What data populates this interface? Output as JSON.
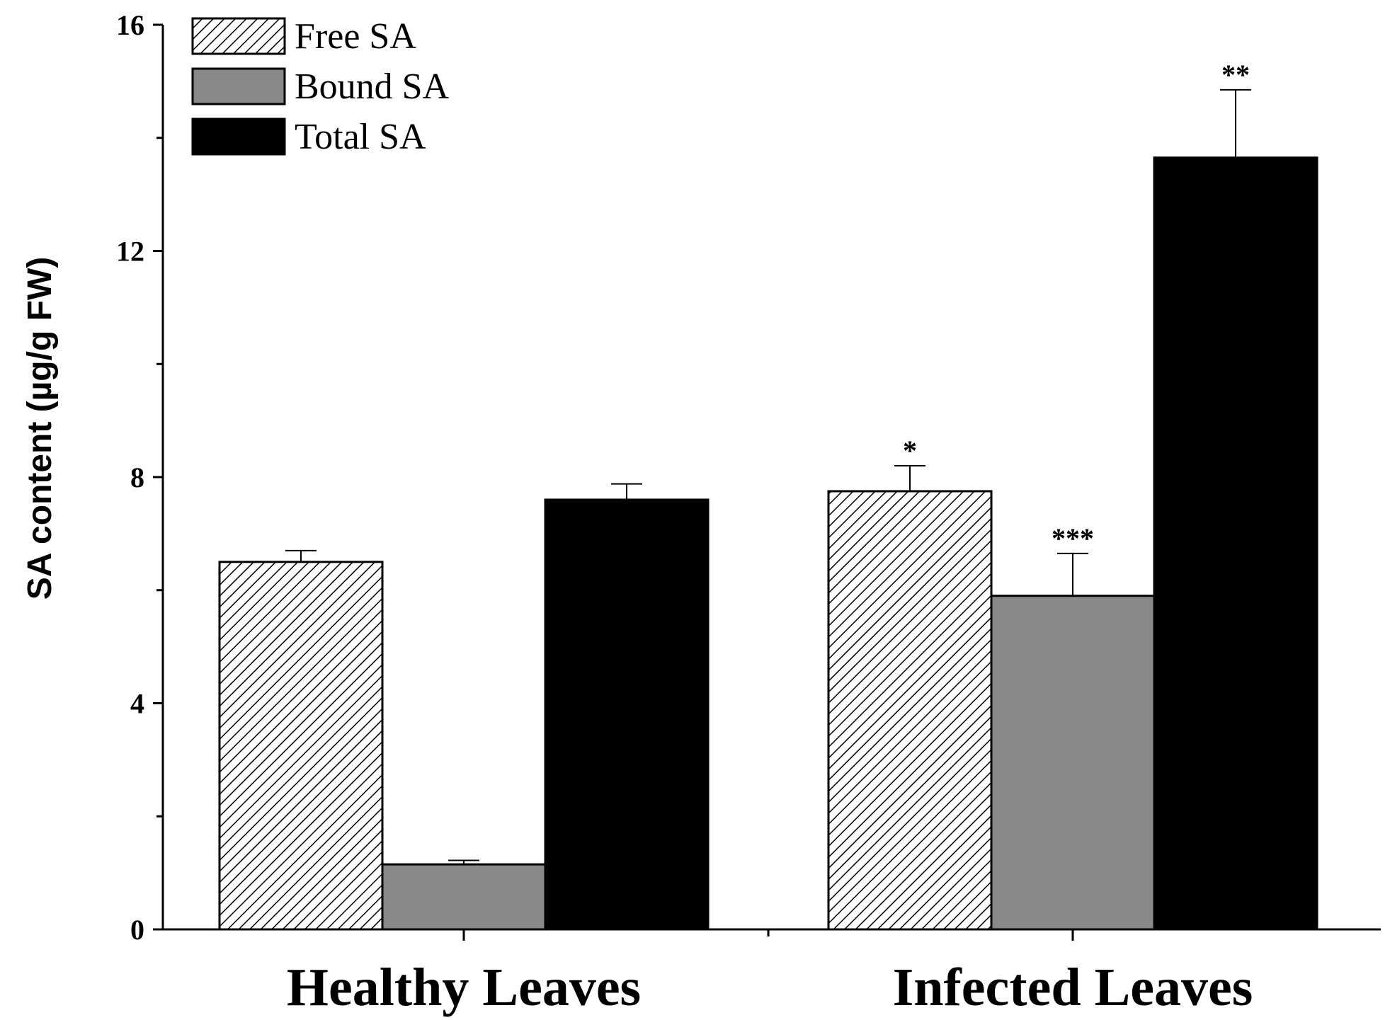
{
  "chart_data": {
    "type": "bar",
    "title": "",
    "xlabel": "",
    "ylabel": "SA content  (µg/g FW)",
    "ylim": [
      0,
      16
    ],
    "yticks": [
      0,
      4,
      8,
      12,
      16
    ],
    "categories": [
      "Healthy Leaves",
      "Infected Leaves"
    ],
    "series": [
      {
        "name": "Free SA",
        "values": [
          6.5,
          7.75
        ],
        "errors": [
          0.2,
          0.45
        ],
        "significance": [
          "",
          "*"
        ],
        "fill": "hatch",
        "color": "#ffffff"
      },
      {
        "name": "Bound SA",
        "values": [
          1.15,
          5.9
        ],
        "errors": [
          0.07,
          0.75
        ],
        "significance": [
          "",
          "***"
        ],
        "fill": "solid",
        "color": "#888888"
      },
      {
        "name": "Total SA",
        "values": [
          7.6,
          13.65
        ],
        "errors": [
          0.28,
          1.2
        ],
        "significance": [
          "",
          "**"
        ],
        "fill": "solid",
        "color": "#000000"
      }
    ],
    "legend_position": "top-left",
    "grid": false
  }
}
